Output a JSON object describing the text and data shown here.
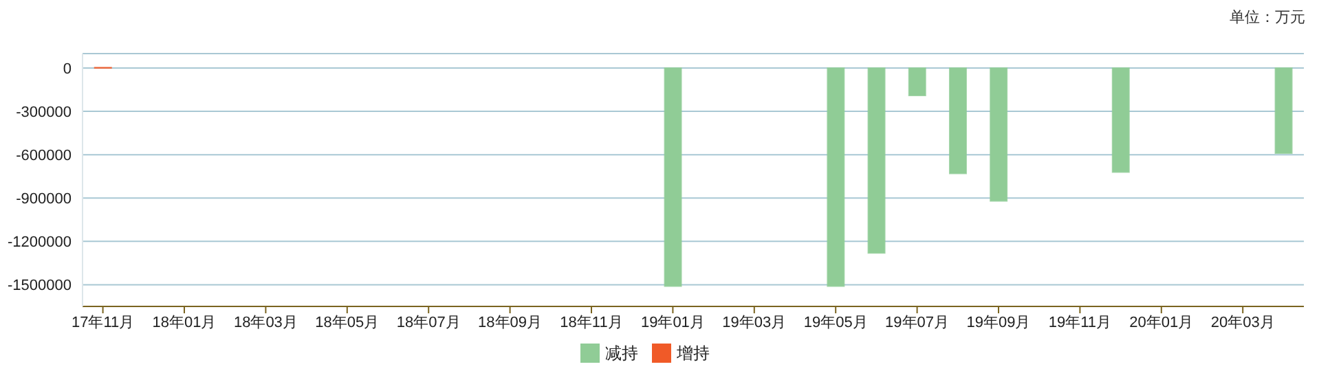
{
  "chart_data": {
    "type": "bar",
    "annotations": [
      "单位：万元"
    ],
    "categories": [
      "17年11月",
      null,
      "18年01月",
      null,
      "18年03月",
      null,
      "18年05月",
      null,
      "18年07月",
      null,
      "18年09月",
      null,
      "18年11月",
      null,
      "19年01月",
      null,
      "19年03月",
      null,
      "19年05月",
      null,
      "19年07月",
      null,
      "19年09月",
      null,
      "19年11月",
      null,
      "20年01月",
      null,
      "20年03月",
      null
    ],
    "series": [
      {
        "name": "增持",
        "color": "#f05a28",
        "values": [
          3000,
          null,
          null,
          null,
          null,
          null,
          null,
          null,
          null,
          null,
          null,
          null,
          null,
          null,
          null,
          null,
          null,
          null,
          null,
          null,
          null,
          null,
          null,
          null,
          null,
          null,
          null,
          null,
          null,
          null
        ]
      },
      {
        "name": "减持",
        "color": "#90cc96",
        "values": [
          null,
          null,
          null,
          null,
          null,
          null,
          null,
          null,
          null,
          null,
          null,
          null,
          null,
          null,
          -1510000,
          null,
          null,
          null,
          -1510000,
          -1280000,
          -190000,
          -730000,
          -920000,
          null,
          null,
          -720000,
          null,
          null,
          null,
          -590000
        ]
      }
    ],
    "stacked": true,
    "ylim": [
      -1650000,
      100000
    ],
    "yticks": [
      0,
      -300000,
      -600000,
      -900000,
      -1200000,
      -1500000
    ],
    "grid": "y",
    "legend": "bottom"
  }
}
